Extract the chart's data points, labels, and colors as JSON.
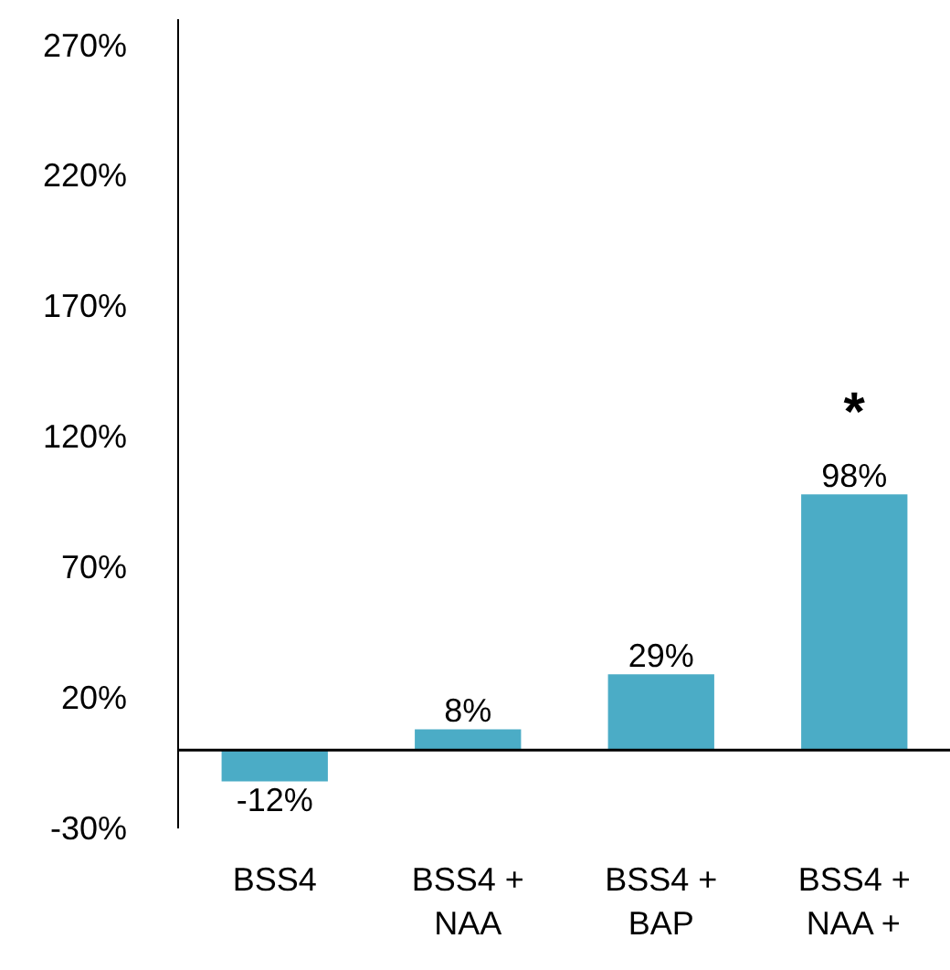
{
  "chart_data": {
    "type": "bar",
    "categories": [
      "BSS4",
      "BSS4 + NAA",
      "BSS4 + BAP",
      "BSS4 + NAA +"
    ],
    "values": [
      -12,
      8,
      29,
      98
    ],
    "color": "#4bacc6",
    "value_labels": [
      "-12%",
      "8%",
      "29%",
      "98%"
    ],
    "ylim": [
      -30,
      280
    ],
    "yticks": [
      {
        "value": -30,
        "label": "-30%"
      },
      {
        "value": 20,
        "label": "20%"
      },
      {
        "value": 70,
        "label": "70%"
      },
      {
        "value": 120,
        "label": "120%"
      },
      {
        "value": 170,
        "label": "170%"
      },
      {
        "value": 220,
        "label": "220%"
      },
      {
        "value": 270,
        "label": "270%"
      }
    ],
    "annotations": [
      "*"
    ],
    "grid": false
  }
}
